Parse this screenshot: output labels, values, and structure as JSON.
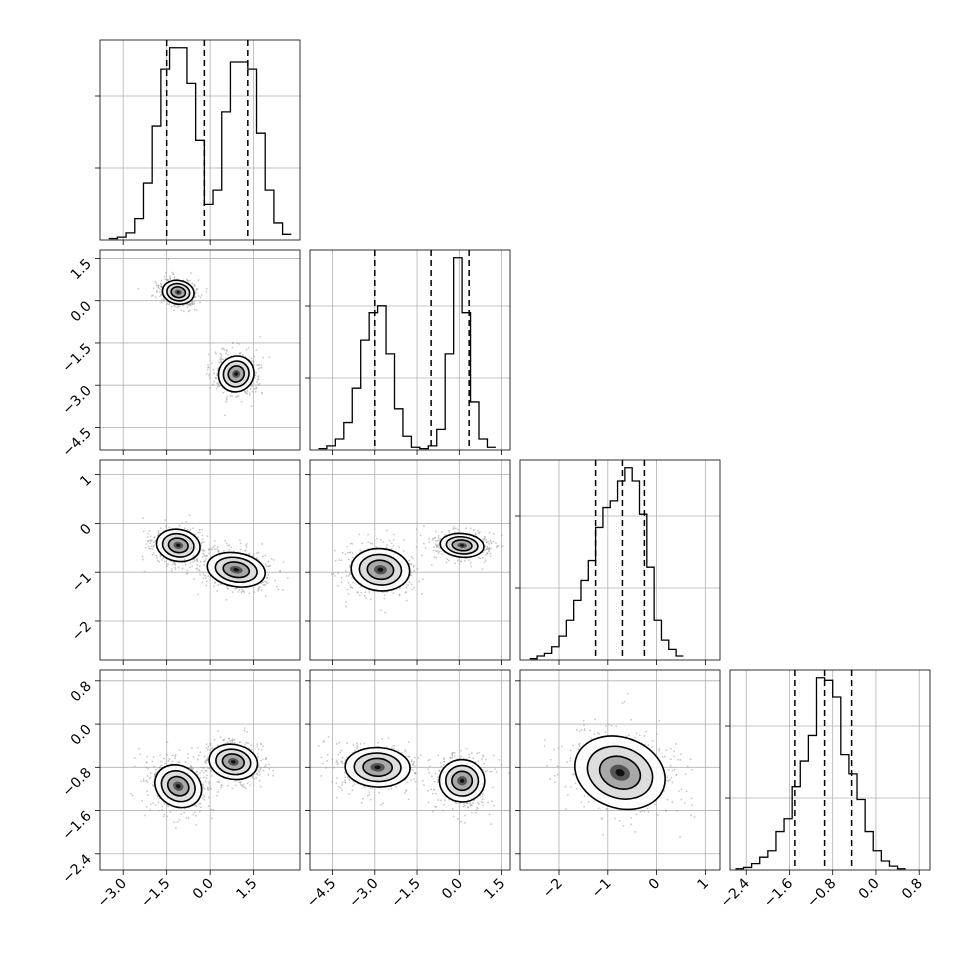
{
  "chart_data": {
    "type": "corner",
    "title": "",
    "parameters": [
      {
        "range": [
          -3.8,
          3.1
        ],
        "ticks": [
          -3.0,
          -1.5,
          0.0,
          1.5
        ],
        "ticklabels": [
          "−3.0",
          "−1.5",
          "0.0",
          "1.5"
        ]
      },
      {
        "range": [
          -5.3,
          1.8
        ],
        "ticks": [
          -4.5,
          -3.0,
          -1.5,
          0.0,
          1.5
        ],
        "ticklabels": [
          "−4.5",
          "−3.0",
          "−1.5",
          "0.0",
          "1.5"
        ]
      },
      {
        "range": [
          -2.8,
          1.3
        ],
        "ticks": [
          -2,
          -1,
          0,
          1
        ],
        "ticklabels": [
          "−2",
          "−1",
          "0",
          "1"
        ]
      },
      {
        "range": [
          -2.7,
          1.0
        ],
        "ticks": [
          -2.4,
          -1.6,
          -0.8,
          0.0,
          0.8
        ],
        "ticklabels": [
          "−2.4",
          "−1.6",
          "−0.8",
          "0.0",
          "0.8"
        ]
      }
    ],
    "histograms": [
      {
        "param": 0,
        "quantiles": [
          -1.5,
          -0.2,
          1.3
        ],
        "bin_edges": [
          -3.5,
          -3.2,
          -2.9,
          -2.6,
          -2.3,
          -2.0,
          -1.7,
          -1.4,
          -1.1,
          -0.8,
          -0.5,
          -0.2,
          0.1,
          0.4,
          0.7,
          1.0,
          1.3,
          1.6,
          1.9,
          2.2,
          2.5,
          2.8
        ],
        "counts": [
          1,
          2,
          5,
          15,
          40,
          80,
          120,
          135,
          135,
          110,
          70,
          25,
          35,
          90,
          125,
          125,
          120,
          75,
          35,
          12,
          4
        ]
      },
      {
        "param": 1,
        "quantiles": [
          -3.0,
          -1.0,
          0.35
        ],
        "bin_edges": [
          -5.0,
          -4.7,
          -4.4,
          -4.1,
          -3.8,
          -3.5,
          -3.2,
          -2.9,
          -2.6,
          -2.3,
          -2.0,
          -1.7,
          -1.4,
          -1.1,
          -0.8,
          -0.5,
          -0.2,
          0.1,
          0.4,
          0.7,
          1.0,
          1.3
        ],
        "counts": [
          1,
          3,
          8,
          20,
          45,
          80,
          100,
          105,
          70,
          30,
          10,
          2,
          1,
          3,
          15,
          70,
          140,
          100,
          35,
          8,
          2
        ]
      },
      {
        "param": 2,
        "quantiles": [
          -1.25,
          -0.7,
          -0.25
        ],
        "bin_edges": [
          -2.6,
          -2.45,
          -2.3,
          -2.15,
          -2.0,
          -1.85,
          -1.7,
          -1.55,
          -1.4,
          -1.25,
          -1.1,
          -0.95,
          -0.8,
          -0.65,
          -0.5,
          -0.35,
          -0.2,
          -0.05,
          0.1,
          0.25,
          0.4,
          0.55
        ],
        "counts": [
          1,
          3,
          5,
          10,
          18,
          30,
          45,
          60,
          75,
          100,
          115,
          120,
          135,
          145,
          135,
          110,
          70,
          30,
          15,
          8,
          3
        ]
      },
      {
        "param": 3,
        "quantiles": [
          -1.5,
          -0.95,
          -0.45
        ],
        "bin_edges": [
          -2.6,
          -2.45,
          -2.3,
          -2.15,
          -2.0,
          -1.85,
          -1.7,
          -1.55,
          -1.4,
          -1.25,
          -1.1,
          -0.95,
          -0.8,
          -0.65,
          -0.5,
          -0.35,
          -0.2,
          -0.05,
          0.1,
          0.25,
          0.4,
          0.55
        ],
        "counts": [
          1,
          2,
          5,
          10,
          15,
          30,
          40,
          65,
          85,
          105,
          150,
          148,
          135,
          90,
          75,
          55,
          30,
          15,
          7,
          3,
          1
        ]
      }
    ],
    "joint": [
      {
        "x": 0,
        "y": 1,
        "modes": [
          {
            "center": [
              -1.1,
              0.3
            ],
            "radius": [
              0.55,
              0.42
            ],
            "angle": -10
          },
          {
            "center": [
              0.9,
              -2.6
            ],
            "radius": [
              0.6,
              0.65
            ],
            "angle": -40
          }
        ]
      },
      {
        "x": 0,
        "y": 2,
        "modes": [
          {
            "center": [
              -1.1,
              -0.45
            ],
            "radius": [
              0.55,
              0.45
            ],
            "angle": 80
          },
          {
            "center": [
              0.9,
              -0.95
            ],
            "radius": [
              0.58,
              0.6
            ],
            "angle": 80
          }
        ]
      },
      {
        "x": 1,
        "y": 2,
        "modes": [
          {
            "center": [
              -2.8,
              -0.95
            ],
            "radius": [
              0.75,
              0.6
            ],
            "angle": 85
          },
          {
            "center": [
              0.1,
              -0.45
            ],
            "radius": [
              0.42,
              0.45
            ],
            "angle": 85
          }
        ]
      },
      {
        "x": 0,
        "y": 3,
        "modes": [
          {
            "center": [
              -1.1,
              -1.15
            ],
            "radius": [
              0.7,
              0.45
            ],
            "angle": 60
          },
          {
            "center": [
              0.8,
              -0.7
            ],
            "radius": [
              0.6,
              0.45
            ],
            "angle": 80
          }
        ]
      },
      {
        "x": 1,
        "y": 3,
        "modes": [
          {
            "center": [
              -2.9,
              -0.8
            ],
            "radius": [
              0.7,
              0.6
            ],
            "angle": 88
          },
          {
            "center": [
              0.1,
              -1.05
            ],
            "radius": [
              0.75,
              0.42
            ],
            "angle": 88
          }
        ]
      },
      {
        "x": 2,
        "y": 3,
        "modes": [
          {
            "center": [
              -0.75,
              -0.9
            ],
            "radius": [
              0.95,
              0.65
            ],
            "angle": -20
          }
        ]
      }
    ]
  }
}
